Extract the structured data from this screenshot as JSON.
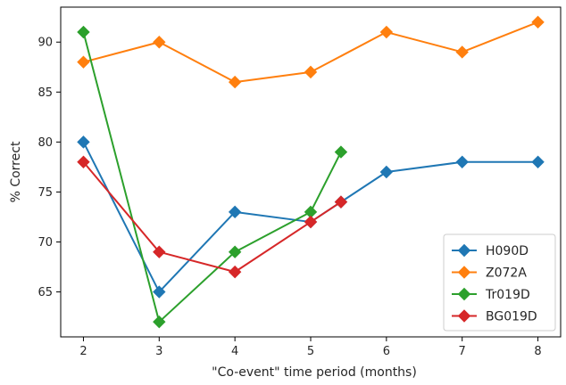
{
  "chart_data": {
    "type": "line",
    "xlabel": "\"Co-event\" time period (months)",
    "ylabel": "% Correct",
    "xlim": [
      1.7,
      8.3
    ],
    "ylim": [
      60.5,
      93.5
    ],
    "xticks": [
      2,
      3,
      4,
      5,
      6,
      7,
      8
    ],
    "yticks": [
      65,
      70,
      75,
      80,
      85,
      90
    ],
    "grid": false,
    "legend_position": "lower-right",
    "series": [
      {
        "name": "H090D",
        "color": "#1f77b4",
        "x": [
          2,
          3,
          4,
          5,
          5.4,
          6,
          7,
          8
        ],
        "values": [
          80,
          65,
          73,
          72,
          74,
          77,
          78,
          78
        ]
      },
      {
        "name": "Z072A",
        "color": "#ff7f0e",
        "x": [
          2,
          3,
          4,
          5,
          6,
          7,
          8
        ],
        "values": [
          88,
          90,
          86,
          87,
          91,
          89,
          92
        ]
      },
      {
        "name": "Tr019D",
        "color": "#2ca02c",
        "x": [
          2,
          3,
          4,
          5,
          5.4
        ],
        "values": [
          91,
          62,
          69,
          73,
          79
        ]
      },
      {
        "name": "BG019D",
        "color": "#d62728",
        "x": [
          2,
          3,
          4,
          5,
          5.4
        ],
        "values": [
          78,
          69,
          67,
          72,
          74
        ]
      }
    ]
  }
}
